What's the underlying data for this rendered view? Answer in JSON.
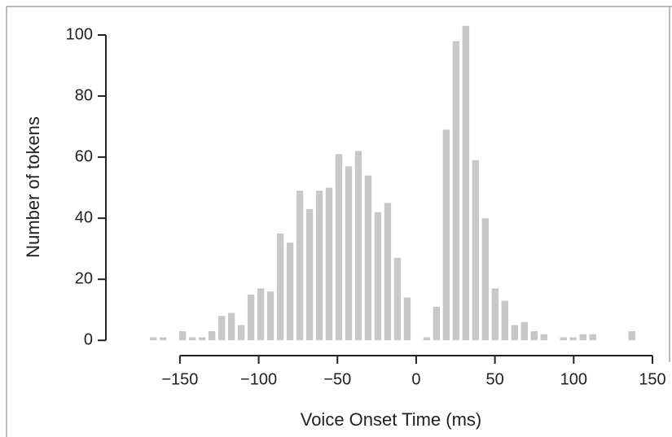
{
  "chart_data": {
    "type": "histogram",
    "xlabel": "Voice Onset Time (ms)",
    "ylabel": "Number of tokens",
    "color": "#c8c8c8",
    "bins": [
      -170,
      -163.8,
      -157.6,
      -151.4,
      -145.2,
      -139,
      -132.8,
      -126.6,
      -120.4,
      -114.2,
      -108,
      -101.8,
      -95.6,
      -89.4,
      -83.2,
      -77,
      -70.8,
      -64.6,
      -58.4,
      -52.2,
      -46,
      -39.8,
      -33.6,
      -27.4,
      -21.2,
      -15,
      -8.8,
      -2.6,
      3.6,
      9.8,
      16,
      22.2,
      28.4,
      34.6,
      40.8,
      47,
      53.2,
      59.4,
      65.6,
      71.8,
      78,
      84.2,
      90.4,
      96.6,
      102.8,
      109,
      115.2,
      121.4,
      127.6,
      133.8,
      140
    ],
    "counts": [
      1,
      1,
      0,
      3,
      1,
      1,
      3,
      8,
      9,
      5,
      15,
      17,
      16,
      35,
      32,
      49,
      43,
      49,
      50,
      61,
      57,
      62,
      54,
      42,
      45,
      27,
      14,
      0,
      1,
      11,
      69,
      98,
      103,
      59,
      40,
      17,
      13,
      5,
      6,
      3,
      2,
      0,
      1,
      1,
      2,
      2,
      0,
      0,
      0,
      3
    ],
    "xlim": [
      -197,
      150
    ],
    "ylim": [
      -5,
      104
    ],
    "xticks": [
      {
        "value": -150,
        "label": "−150"
      },
      {
        "value": -100,
        "label": "−100"
      },
      {
        "value": -50,
        "label": "−50"
      },
      0,
      50,
      100,
      150
    ],
    "yticks": [
      0,
      20,
      40,
      60,
      80,
      100
    ]
  }
}
